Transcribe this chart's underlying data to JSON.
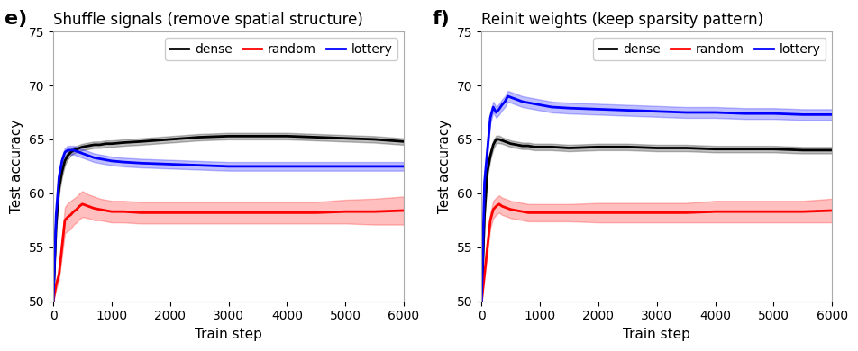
{
  "panel_e": {
    "title": "Shuffle signals (remove spatial structure)",
    "label": "e)",
    "xlabel": "Train step",
    "ylabel": "Test accuracy",
    "xlim": [
      0,
      6000
    ],
    "ylim": [
      50,
      75
    ],
    "yticks": [
      50,
      55,
      60,
      65,
      70,
      75
    ],
    "xticks": [
      0,
      1000,
      2000,
      3000,
      4000,
      5000,
      6000
    ],
    "dense": {
      "color": "#000000",
      "x": [
        0,
        50,
        100,
        150,
        200,
        250,
        300,
        350,
        400,
        450,
        500,
        600,
        700,
        800,
        900,
        1000,
        1200,
        1500,
        2000,
        2500,
        3000,
        3500,
        4000,
        4500,
        5000,
        5500,
        6000
      ],
      "mean": [
        50.0,
        57.0,
        60.5,
        62.0,
        63.0,
        63.5,
        63.8,
        64.0,
        64.1,
        64.2,
        64.3,
        64.4,
        64.5,
        64.5,
        64.6,
        64.6,
        64.7,
        64.8,
        65.0,
        65.2,
        65.3,
        65.3,
        65.3,
        65.2,
        65.1,
        65.0,
        64.8
      ],
      "std": [
        0.0,
        0.5,
        0.6,
        0.5,
        0.4,
        0.35,
        0.3,
        0.3,
        0.3,
        0.3,
        0.3,
        0.3,
        0.3,
        0.3,
        0.3,
        0.3,
        0.3,
        0.3,
        0.3,
        0.3,
        0.3,
        0.3,
        0.3,
        0.3,
        0.3,
        0.3,
        0.3
      ]
    },
    "random": {
      "color": "#ff0000",
      "x": [
        0,
        50,
        100,
        150,
        200,
        250,
        300,
        350,
        400,
        450,
        500,
        600,
        700,
        800,
        900,
        1000,
        1200,
        1500,
        2000,
        2500,
        3000,
        3500,
        4000,
        4500,
        5000,
        5500,
        6000
      ],
      "mean": [
        50.0,
        51.5,
        52.5,
        55.0,
        57.5,
        57.8,
        58.0,
        58.3,
        58.5,
        58.8,
        59.0,
        58.8,
        58.6,
        58.5,
        58.4,
        58.3,
        58.3,
        58.2,
        58.2,
        58.2,
        58.2,
        58.2,
        58.2,
        58.2,
        58.3,
        58.3,
        58.4
      ],
      "std": [
        0.0,
        0.4,
        0.5,
        0.8,
        1.2,
        1.3,
        1.3,
        1.2,
        1.2,
        1.2,
        1.2,
        1.1,
        1.1,
        1.0,
        1.0,
        1.0,
        1.0,
        1.0,
        1.0,
        1.0,
        1.0,
        1.0,
        1.0,
        1.0,
        1.1,
        1.2,
        1.3
      ]
    },
    "lottery": {
      "color": "#0000ff",
      "x": [
        0,
        50,
        100,
        150,
        200,
        250,
        300,
        350,
        400,
        450,
        500,
        600,
        700,
        800,
        900,
        1000,
        1200,
        1500,
        2000,
        2500,
        3000,
        3500,
        4000,
        4500,
        5000,
        5500,
        6000
      ],
      "mean": [
        50.0,
        58.0,
        61.5,
        63.0,
        63.8,
        64.0,
        64.0,
        64.0,
        63.9,
        63.8,
        63.7,
        63.5,
        63.3,
        63.2,
        63.1,
        63.0,
        62.9,
        62.8,
        62.7,
        62.6,
        62.5,
        62.5,
        62.5,
        62.5,
        62.5,
        62.5,
        62.5
      ],
      "std": [
        0.0,
        0.5,
        0.5,
        0.4,
        0.4,
        0.4,
        0.4,
        0.4,
        0.4,
        0.4,
        0.4,
        0.4,
        0.4,
        0.4,
        0.4,
        0.4,
        0.4,
        0.4,
        0.4,
        0.4,
        0.4,
        0.4,
        0.4,
        0.4,
        0.4,
        0.4,
        0.4
      ]
    }
  },
  "panel_f": {
    "title": "Reinit weights (keep sparsity pattern)",
    "label": "f)",
    "xlabel": "Train step",
    "ylabel": "Test accuracy",
    "xlim": [
      0,
      6000
    ],
    "ylim": [
      50,
      75
    ],
    "yticks": [
      50,
      55,
      60,
      65,
      70,
      75
    ],
    "xticks": [
      0,
      1000,
      2000,
      3000,
      4000,
      5000,
      6000
    ],
    "dense": {
      "color": "#000000",
      "x": [
        0,
        50,
        100,
        150,
        200,
        250,
        300,
        350,
        400,
        450,
        500,
        600,
        700,
        800,
        900,
        1000,
        1200,
        1500,
        2000,
        2500,
        3000,
        3500,
        4000,
        4500,
        5000,
        5500,
        6000
      ],
      "mean": [
        50.0,
        58.0,
        62.0,
        63.5,
        64.5,
        65.0,
        65.0,
        64.9,
        64.8,
        64.7,
        64.6,
        64.5,
        64.4,
        64.4,
        64.3,
        64.3,
        64.3,
        64.2,
        64.3,
        64.3,
        64.2,
        64.2,
        64.1,
        64.1,
        64.1,
        64.0,
        64.0
      ],
      "std": [
        0.0,
        0.5,
        0.5,
        0.4,
        0.4,
        0.35,
        0.35,
        0.3,
        0.3,
        0.3,
        0.3,
        0.3,
        0.3,
        0.3,
        0.3,
        0.3,
        0.3,
        0.3,
        0.3,
        0.3,
        0.3,
        0.3,
        0.3,
        0.3,
        0.3,
        0.3,
        0.3
      ]
    },
    "random": {
      "color": "#ff0000",
      "x": [
        0,
        50,
        100,
        150,
        200,
        250,
        300,
        350,
        400,
        450,
        500,
        600,
        700,
        800,
        900,
        1000,
        1200,
        1500,
        2000,
        2500,
        3000,
        3500,
        4000,
        4500,
        5000,
        5500,
        6000
      ],
      "mean": [
        50.0,
        52.5,
        55.0,
        57.5,
        58.5,
        58.8,
        59.0,
        58.8,
        58.7,
        58.6,
        58.5,
        58.4,
        58.3,
        58.2,
        58.2,
        58.2,
        58.2,
        58.2,
        58.2,
        58.2,
        58.2,
        58.2,
        58.3,
        58.3,
        58.3,
        58.3,
        58.4
      ],
      "std": [
        0.0,
        0.4,
        0.6,
        0.7,
        0.8,
        0.8,
        0.8,
        0.8,
        0.8,
        0.8,
        0.8,
        0.8,
        0.8,
        0.8,
        0.8,
        0.8,
        0.8,
        0.8,
        0.9,
        0.9,
        0.9,
        0.9,
        1.0,
        1.0,
        1.0,
        1.0,
        1.1
      ]
    },
    "lottery": {
      "color": "#0000ff",
      "x": [
        0,
        50,
        100,
        150,
        200,
        250,
        300,
        350,
        400,
        450,
        500,
        600,
        700,
        800,
        900,
        1000,
        1200,
        1500,
        2000,
        2500,
        3000,
        3500,
        4000,
        4500,
        5000,
        5500,
        6000
      ],
      "mean": [
        50.0,
        61.0,
        64.0,
        67.0,
        68.0,
        67.5,
        67.8,
        68.2,
        68.5,
        69.0,
        68.9,
        68.7,
        68.5,
        68.4,
        68.3,
        68.2,
        68.0,
        67.9,
        67.8,
        67.7,
        67.6,
        67.5,
        67.5,
        67.4,
        67.4,
        67.3,
        67.3
      ],
      "std": [
        0.0,
        0.5,
        0.5,
        0.5,
        0.5,
        0.5,
        0.5,
        0.5,
        0.5,
        0.5,
        0.5,
        0.5,
        0.5,
        0.5,
        0.5,
        0.5,
        0.5,
        0.5,
        0.5,
        0.5,
        0.5,
        0.5,
        0.5,
        0.5,
        0.5,
        0.5,
        0.5
      ]
    }
  },
  "legend_labels": [
    "dense",
    "random",
    "lottery"
  ],
  "bg_color": "#ffffff",
  "title_fontsize": 12,
  "label_fontsize": 16,
  "axis_label_fontsize": 11,
  "tick_fontsize": 10,
  "legend_fontsize": 10,
  "linewidth": 2.0,
  "alpha_fill": 0.25
}
